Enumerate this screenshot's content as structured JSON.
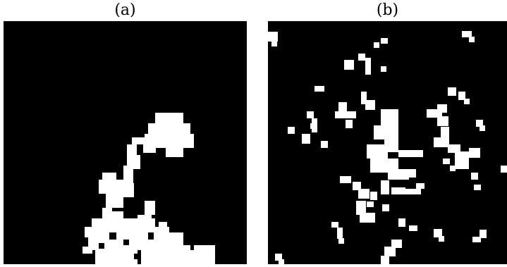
{
  "panels": [
    {
      "label": "(a)",
      "background": "#000000",
      "foreground": "#ffffff"
    },
    {
      "label": "(b)",
      "background": "#000000",
      "foreground": "#ffffff"
    }
  ]
}
